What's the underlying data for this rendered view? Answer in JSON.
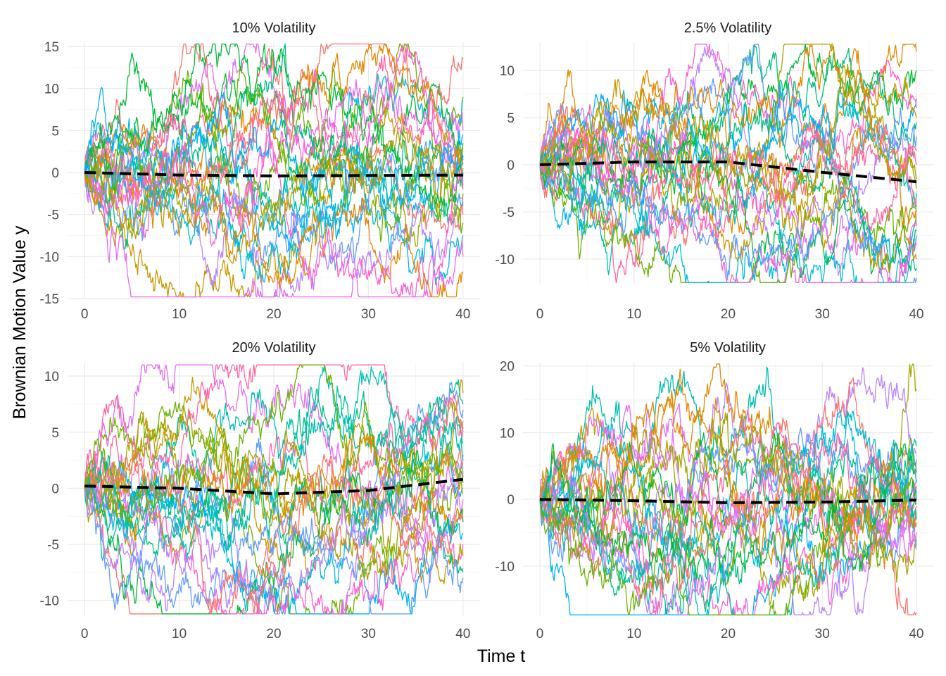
{
  "chart_data": [
    {
      "type": "line",
      "title": "10% Volatility",
      "xlim": [
        -1.8,
        41.8
      ],
      "ylim": [
        -15,
        15.5
      ],
      "x_ticks": [
        0,
        10,
        20,
        30,
        40
      ],
      "y_ticks": [
        -15,
        -10,
        -5,
        0,
        5,
        10,
        15
      ],
      "mean_series": {
        "x": [
          0,
          10,
          20,
          30,
          40
        ],
        "y": [
          0,
          -0.3,
          -0.4,
          -0.35,
          -0.3
        ]
      },
      "paths_shown": 24,
      "path_endpoints": [
        13.5,
        9,
        8.5,
        5,
        3,
        2,
        1.5,
        1,
        0.5,
        0,
        -1,
        -2,
        -2.5,
        -3.5,
        -4,
        -5,
        -6,
        -7.5,
        -10,
        -12,
        3.5,
        4.5,
        -1.5,
        2.5
      ]
    },
    {
      "type": "line",
      "title": "2.5% Volatility",
      "xlim": [
        -1.8,
        41.8
      ],
      "ylim": [
        -12.7,
        13
      ],
      "x_ticks": [
        0,
        10,
        20,
        30,
        40
      ],
      "y_ticks": [
        -10,
        -5,
        0,
        5,
        10
      ],
      "mean_series": {
        "x": [
          0,
          10,
          20,
          30,
          40
        ],
        "y": [
          0,
          0.3,
          0.3,
          -0.8,
          -1.8
        ]
      },
      "paths_shown": 24,
      "path_endpoints": [
        12,
        10,
        7,
        6,
        5,
        4.5,
        3,
        0,
        -1.5,
        -3,
        -4,
        -4.5,
        -5,
        -5.5,
        -6,
        -6.5,
        -7,
        -7.5,
        -8.5,
        -10,
        -11,
        -12,
        1.5,
        -2.5
      ]
    },
    {
      "type": "line",
      "title": "20% Volatility",
      "xlim": [
        -1.8,
        41.8
      ],
      "ylim": [
        -11.4,
        11.2
      ],
      "x_ticks": [
        0,
        10,
        20,
        30,
        40
      ],
      "y_ticks": [
        -10,
        -5,
        0,
        5,
        10
      ],
      "mean_series": {
        "x": [
          0,
          10,
          20,
          30,
          40
        ],
        "y": [
          0.2,
          0,
          -0.5,
          -0.2,
          0.8
        ]
      },
      "paths_shown": 24,
      "path_endpoints": [
        8.5,
        7.5,
        7,
        6,
        5,
        4,
        3,
        2,
        1,
        0,
        -1,
        -2,
        -3,
        -4,
        -5,
        -6,
        -7.5,
        -8,
        5.5,
        -0.5,
        2.5,
        1.5,
        -2.5,
        0.5
      ]
    },
    {
      "type": "line",
      "title": "5% Volatility",
      "xlim": [
        -1.8,
        41.8
      ],
      "ylim": [
        -17.5,
        20.5
      ],
      "x_ticks": [
        0,
        10,
        20,
        30,
        40
      ],
      "y_ticks": [
        -10,
        0,
        10,
        20
      ],
      "mean_series": {
        "x": [
          0,
          10,
          20,
          30,
          40
        ],
        "y": [
          0,
          -0.2,
          -0.5,
          -0.4,
          -0.1
        ]
      },
      "paths_shown": 24,
      "path_endpoints": [
        16.5,
        8,
        7,
        6,
        5,
        4,
        3,
        2,
        1,
        0,
        -1,
        -2,
        -3,
        -4,
        -5,
        -6,
        -7,
        -7.5,
        -17,
        -0.5,
        2.5,
        1.5,
        -3.5,
        4.5
      ]
    }
  ],
  "axes": {
    "xlabel": "Time t",
    "ylabel": "Brownian Motion Value y"
  },
  "palette": [
    "#F8766D",
    "#E58700",
    "#C99800",
    "#A3A500",
    "#6BB100",
    "#00BA38",
    "#00BF7D",
    "#00C0AF",
    "#00BCD8",
    "#00B0F6",
    "#619CFF",
    "#B983FF",
    "#E76BF3",
    "#FD61D1",
    "#FF67A4"
  ]
}
